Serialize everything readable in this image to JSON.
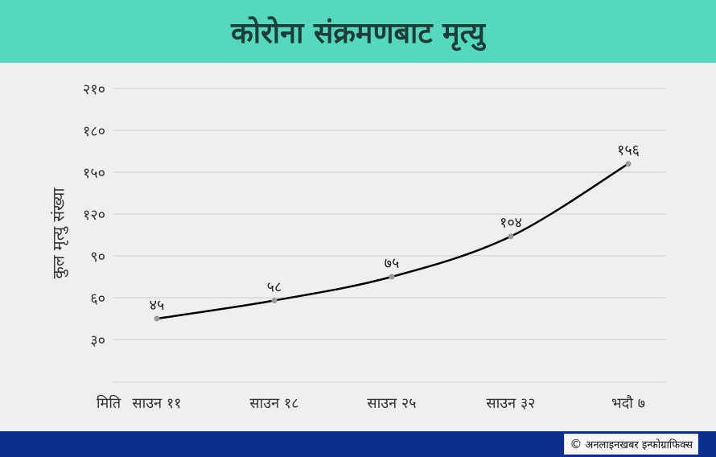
{
  "title": "कोरोना संक्रमणबाट मृत्यु",
  "credit": {
    "symbol": "©",
    "text": "अनलाइनखबर इन्फोग्राफिक्स"
  },
  "chart_data": {
    "type": "line",
    "title": "कोरोना संक्रमणबाट मृत्यु",
    "xlabel": "मिति",
    "ylabel": "कुल मृत्यु संख्या",
    "categories": [
      "साउन ११",
      "साउन १८",
      "साउन २५",
      "साउन ३२",
      "भदौ ७"
    ],
    "values": [
      45,
      58,
      75,
      104,
      156
    ],
    "value_labels": [
      "४५",
      "५८",
      "७५",
      "१०४",
      "१५६"
    ],
    "yticks": [
      30,
      60,
      90,
      120,
      150,
      180,
      210
    ],
    "ytick_labels": [
      "३०",
      "६०",
      "९०",
      "१२०",
      "१५०",
      "१८०",
      "२१०"
    ],
    "ylim": [
      0,
      210
    ],
    "grid": true,
    "line_color": "#000000",
    "marker_color": "#9a9a9a"
  }
}
